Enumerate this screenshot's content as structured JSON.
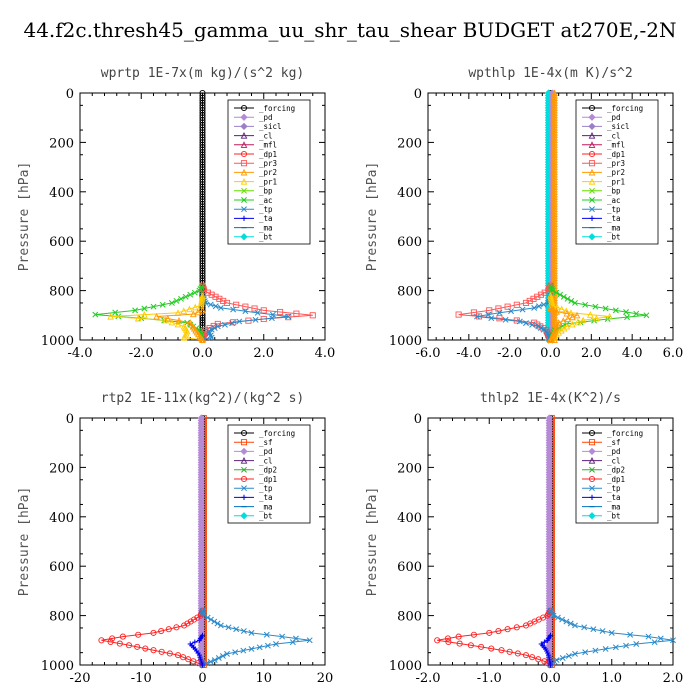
{
  "figure_title": "44.f2c.thresh45_gamma_uu_shr_tau_shear  BUDGET at270E,-2N",
  "colors": {
    "_forcing": "#000000",
    "_pd": "#b58ad6",
    "_sicl": "#9a7fc9",
    "_cl": "#5b1f7a",
    "_mfl": "#c2185b",
    "_dp1": "#ff2222",
    "_pr3": "#ff5555",
    "_pr2": "#ff9900",
    "_pr1": "#ffcc00",
    "_bp": "#66dd00",
    "_ac": "#22cc22",
    "_tp": "#2a8acb",
    "_ta": "#0000ee",
    "_ma": "#0070c0",
    "_bt": "#00dddd",
    "_sf": "#ff4400",
    "_dp2": "#33aa33"
  },
  "chart_data": [
    {
      "type": "line",
      "title": "wprtp  1E-7x(m kg)/(s^2 kg)",
      "ylabel": "Pressure [hPa]",
      "xlim": [
        -4.0,
        4.0
      ],
      "ylim": [
        1000,
        0
      ],
      "y_inverted": true,
      "xticks": [
        -4.0,
        -2.0,
        0.0,
        2.0,
        4.0
      ],
      "xtick_labels": [
        "-4.0",
        "-2.0",
        "0.0",
        "2.0",
        "4.0"
      ],
      "yticks": [
        0,
        200,
        400,
        600,
        800,
        1000
      ],
      "ytick_labels": [
        "0",
        "200",
        "400",
        "600",
        "800",
        "1000"
      ],
      "grid": false,
      "legend_position": "top-right",
      "legend": [
        "_forcing",
        "_pd",
        "_sicl",
        "_cl",
        "_mfl",
        "_dp1",
        "_pr3",
        "_pr2",
        "_pr1",
        "_bp",
        "_ac",
        "_tp",
        "_ta",
        "_ma",
        "_bt"
      ],
      "series": [
        {
          "name": "_forcing",
          "x": [
            0,
            0
          ],
          "y": [
            0,
            1000
          ]
        },
        {
          "name": "_pr3",
          "x": [
            0,
            0.05,
            0.8,
            2.0,
            3.6,
            2.0,
            0.5,
            0.1,
            0
          ],
          "y": [
            780,
            800,
            850,
            880,
            900,
            915,
            935,
            960,
            1000
          ]
        },
        {
          "name": "_ac",
          "x": [
            0,
            -0.1,
            -1.0,
            -2.2,
            -3.5,
            -2.0,
            -0.5,
            -0.1,
            0
          ],
          "y": [
            780,
            800,
            850,
            880,
            897,
            912,
            930,
            960,
            1000
          ]
        },
        {
          "name": "_tp",
          "x": [
            0,
            0.1,
            0.6,
            1.8,
            2.8,
            1.2,
            0.5,
            0.2,
            0.3,
            0
          ],
          "y": [
            820,
            850,
            870,
            890,
            905,
            925,
            945,
            965,
            990,
            1000
          ]
        },
        {
          "name": "_pr1",
          "x": [
            0,
            -0.05,
            -0.8,
            -3.0,
            -1.2,
            -0.6,
            -0.5,
            -0.6,
            0
          ],
          "y": [
            820,
            860,
            890,
            905,
            920,
            945,
            965,
            990,
            1000
          ]
        },
        {
          "name": "_pr2",
          "x": [
            0,
            -0.3,
            -1.5,
            -0.4,
            0
          ],
          "y": [
            880,
            895,
            905,
            930,
            1000
          ]
        }
      ]
    },
    {
      "type": "line",
      "title": "wpthlp  1E-4x(m K)/s^2",
      "ylabel": "Pressure [hPa]",
      "xlim": [
        -6.0,
        6.0
      ],
      "ylim": [
        1000,
        0
      ],
      "y_inverted": true,
      "xticks": [
        -6.0,
        -4.0,
        -2.0,
        0.0,
        2.0,
        4.0,
        6.0
      ],
      "xtick_labels": [
        "-6.0",
        "-4.0",
        "-2.0",
        "0.0",
        "2.0",
        "4.0",
        "6.0"
      ],
      "yticks": [
        0,
        200,
        400,
        600,
        800,
        1000
      ],
      "ytick_labels": [
        "0",
        "200",
        "400",
        "600",
        "800",
        "1000"
      ],
      "grid": false,
      "legend_position": "top-right",
      "legend": [
        "_forcing",
        "_pd",
        "_sicl",
        "_cl",
        "_mfl",
        "_dp1",
        "_pr3",
        "_pr2",
        "_pr1",
        "_bp",
        "_ac",
        "_tp",
        "_ta",
        "_ma",
        "_bt"
      ],
      "series": [
        {
          "name": "_forcing",
          "x": [
            0,
            0
          ],
          "y": [
            0,
            1000
          ]
        },
        {
          "name": "_bt",
          "x": [
            -0.1,
            -0.1
          ],
          "y": [
            0,
            1000
          ]
        },
        {
          "name": "_pd",
          "x": [
            0.1,
            0.1
          ],
          "y": [
            0,
            1000
          ]
        },
        {
          "name": "_pr2",
          "x": [
            0.2,
            0.2
          ],
          "y": [
            0,
            1000
          ]
        },
        {
          "name": "_pr3",
          "x": [
            0,
            -0.1,
            -1.2,
            -3.0,
            -4.5,
            -2.5,
            -0.8,
            -0.2,
            0
          ],
          "y": [
            780,
            800,
            850,
            880,
            897,
            912,
            930,
            960,
            1000
          ]
        },
        {
          "name": "_ac",
          "x": [
            0,
            0.1,
            1.2,
            3.2,
            4.7,
            2.8,
            0.8,
            0.2,
            0
          ],
          "y": [
            780,
            800,
            850,
            880,
            900,
            915,
            935,
            960,
            1000
          ]
        },
        {
          "name": "_tp",
          "x": [
            0,
            -0.1,
            -0.8,
            -2.5,
            -3.6,
            -1.5,
            -0.6,
            -0.2,
            0
          ],
          "y": [
            820,
            850,
            870,
            890,
            905,
            925,
            945,
            965,
            1000
          ]
        },
        {
          "name": "_pr1",
          "x": [
            0,
            0.1,
            1.0,
            2.9,
            1.6,
            0.8,
            0.4,
            0
          ],
          "y": [
            820,
            860,
            890,
            905,
            920,
            945,
            970,
            1000
          ]
        },
        {
          "name": "_pr2",
          "x": [
            0,
            0.3,
            1.3,
            0.4,
            0
          ],
          "y": [
            870,
            885,
            900,
            930,
            1000
          ]
        }
      ]
    },
    {
      "type": "line",
      "title": "rtp2  1E-11x(kg^2)/(kg^2 s)",
      "ylabel": "Pressure [hPa]",
      "xlim": [
        -20,
        20
      ],
      "ylim": [
        1000,
        0
      ],
      "y_inverted": true,
      "xticks": [
        -20,
        -10,
        0,
        10,
        20
      ],
      "xtick_labels": [
        "-20",
        "-10",
        "0",
        "10",
        "20"
      ],
      "yticks": [
        0,
        200,
        400,
        600,
        800,
        1000
      ],
      "ytick_labels": [
        "0",
        "200",
        "400",
        "600",
        "800",
        "1000"
      ],
      "grid": false,
      "legend_position": "top-right",
      "legend": [
        "_forcing",
        "_sf",
        "_pd",
        "_cl",
        "_dp2",
        "_dp1",
        "_tp",
        "_ta",
        "_ma",
        "_bt"
      ],
      "series": [
        {
          "name": "_forcing",
          "x": [
            0,
            0
          ],
          "y": [
            0,
            1000
          ]
        },
        {
          "name": "_sf",
          "x": [
            0.2,
            0.2
          ],
          "y": [
            0,
            1000
          ]
        },
        {
          "name": "_pd",
          "x": [
            -0.2,
            -0.2
          ],
          "y": [
            0,
            1000
          ]
        },
        {
          "name": "_dp1",
          "x": [
            0,
            -0.3,
            -3,
            -8,
            -13,
            -16.5,
            -12,
            -8,
            -4,
            -1.5,
            0
          ],
          "y": [
            780,
            800,
            840,
            870,
            885,
            900,
            920,
            940,
            960,
            985,
            1000
          ]
        },
        {
          "name": "_tp",
          "x": [
            0,
            0.3,
            3,
            8,
            13,
            17.5,
            12,
            8,
            4,
            2,
            0
          ],
          "y": [
            780,
            800,
            840,
            870,
            885,
            900,
            915,
            935,
            955,
            980,
            1000
          ]
        },
        {
          "name": "_ta",
          "x": [
            0,
            -0.5,
            -2.0,
            -1.2,
            -0.5,
            0
          ],
          "y": [
            880,
            900,
            915,
            935,
            960,
            1000
          ]
        }
      ]
    },
    {
      "type": "line",
      "title": "thlp2  1E-4x(K^2)/s",
      "ylabel": "Pressure [hPa]",
      "xlim": [
        -2.0,
        2.0
      ],
      "ylim": [
        1000,
        0
      ],
      "y_inverted": true,
      "xticks": [
        -2.0,
        -1.0,
        0.0,
        1.0,
        2.0
      ],
      "xtick_labels": [
        "-2.0",
        "-1.0",
        "0.0",
        "1.0",
        "2.0"
      ],
      "yticks": [
        0,
        200,
        400,
        600,
        800,
        1000
      ],
      "ytick_labels": [
        "0",
        "200",
        "400",
        "600",
        "800",
        "1000"
      ],
      "grid": false,
      "legend_position": "top-right",
      "legend": [
        "_forcing",
        "_sf",
        "_pd",
        "_cl",
        "_dp2",
        "_dp1",
        "_tp",
        "_ta",
        "_ma",
        "_bt"
      ],
      "series": [
        {
          "name": "_forcing",
          "x": [
            0,
            0
          ],
          "y": [
            0,
            1000
          ]
        },
        {
          "name": "_sf",
          "x": [
            0.02,
            0.02
          ],
          "y": [
            0,
            1000
          ]
        },
        {
          "name": "_pd",
          "x": [
            -0.02,
            -0.02
          ],
          "y": [
            0,
            1000
          ]
        },
        {
          "name": "_dp1",
          "x": [
            0,
            -0.05,
            -0.4,
            -1.0,
            -1.5,
            -1.85,
            -1.3,
            -0.8,
            -0.4,
            -0.1,
            0
          ],
          "y": [
            780,
            800,
            840,
            870,
            885,
            900,
            920,
            940,
            960,
            985,
            1000
          ]
        },
        {
          "name": "_tp",
          "x": [
            0,
            0.05,
            0.4,
            1.0,
            1.6,
            2.0,
            1.4,
            0.9,
            0.4,
            0.1,
            0
          ],
          "y": [
            780,
            800,
            840,
            870,
            885,
            900,
            915,
            935,
            955,
            980,
            1000
          ]
        },
        {
          "name": "_ta",
          "x": [
            0,
            -0.05,
            -0.15,
            -0.08,
            -0.03,
            0
          ],
          "y": [
            880,
            900,
            915,
            935,
            960,
            1000
          ]
        }
      ]
    }
  ]
}
